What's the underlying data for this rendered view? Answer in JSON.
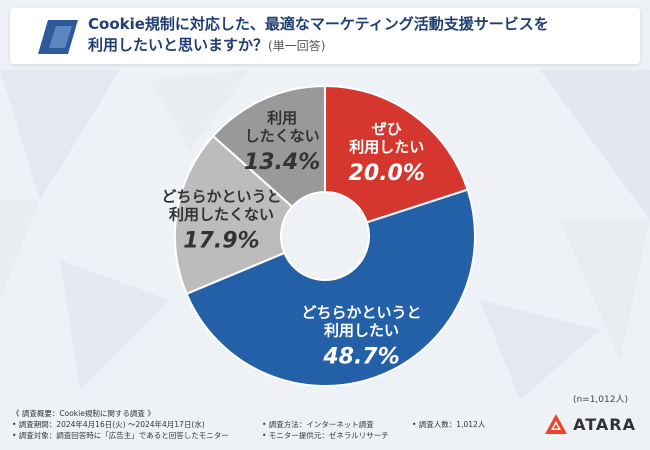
{
  "header": {
    "title_line1": "Cookie規制に対応した、最適なマーケティング活動支援サービスを",
    "title_line2": "利用したいと思いますか？",
    "title_note": "(単一回答)"
  },
  "chart_data": {
    "type": "pie",
    "donut": true,
    "categories": [
      "ぜひ利用したい",
      "どちらかというと利用したい",
      "どちらかというと利用したくない",
      "利用したくない"
    ],
    "values": [
      20.0,
      48.7,
      17.9,
      13.4
    ],
    "label_lines": [
      [
        "ぜひ",
        "利用したい"
      ],
      [
        "どちらかというと",
        "利用したい"
      ],
      [
        "どちらかというと",
        "利用したくない"
      ],
      [
        "利用",
        "したくない"
      ]
    ],
    "value_labels": [
      "20.0%",
      "48.7%",
      "17.9%",
      "13.4%"
    ],
    "colors": [
      "#d5372f",
      "#2460a7",
      "#bcbcbc",
      "#999999"
    ],
    "label_colors": [
      "#ffffff",
      "#ffffff",
      "#333333",
      "#333333"
    ],
    "start_angle_deg": 0,
    "direction": "clockwise"
  },
  "n_label": "(n=1,012人)",
  "survey": {
    "summary": "《 調査概要：Cookie規制に関する調査 》",
    "period": "• 調査期間：2024年4月16日(火) ～2024年4月17日(水)",
    "target": "• 調査対象：調査回答時に「広告主」であると回答したモニター",
    "method": "• 調査方法：インターネット調査",
    "provider": "• モニター提供元：ゼネラルリサーチ",
    "count": "• 調査人数：1,012人"
  },
  "logo": {
    "word": "ATARA",
    "color": "#e8472e",
    "icon": "atara-logo-icon"
  }
}
